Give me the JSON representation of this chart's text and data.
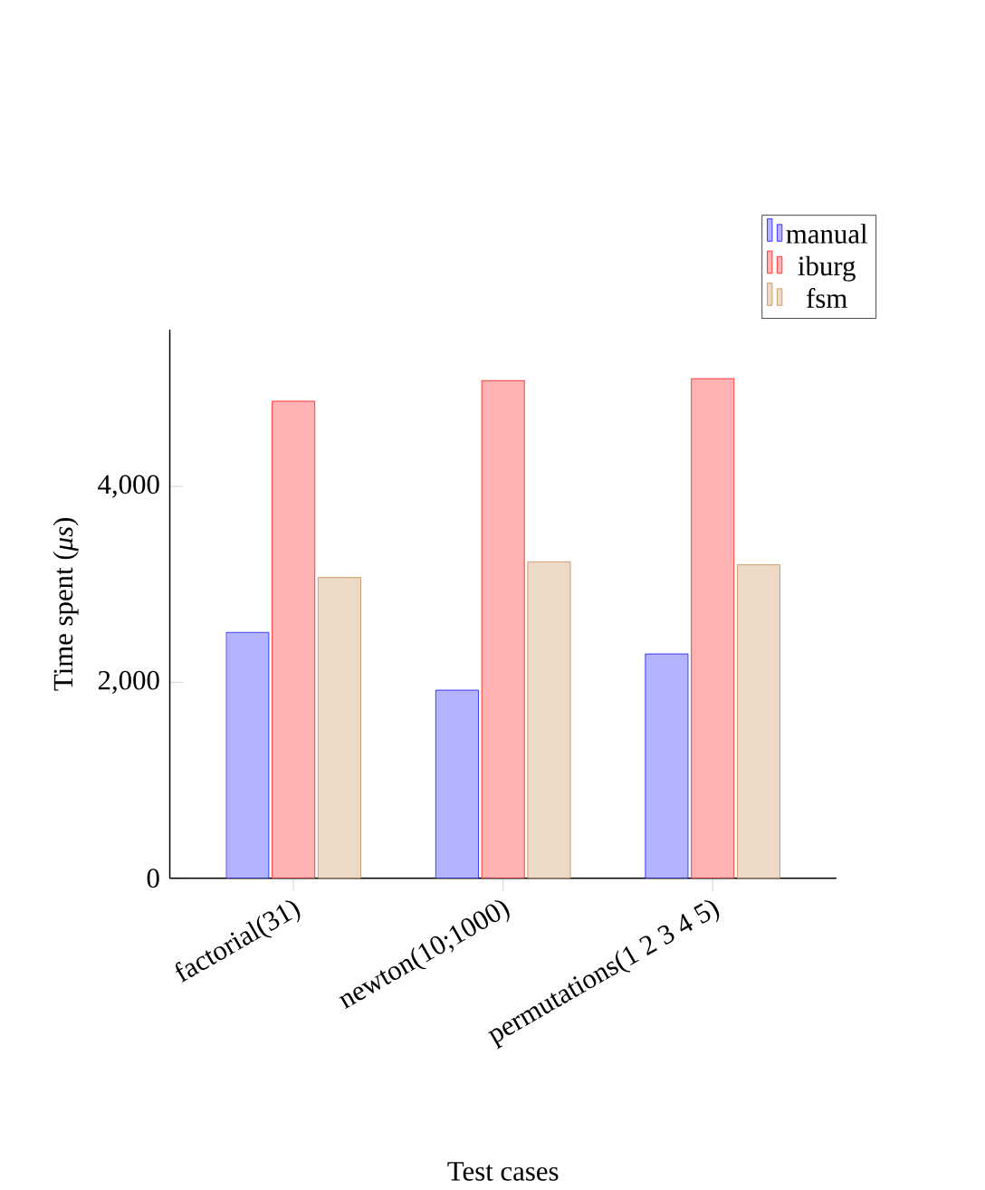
{
  "chart_data": {
    "type": "bar",
    "xlabel": "Test cases",
    "ylabel": "Time spent (*μs*)",
    "categories": [
      "factorial(31)",
      "newton(10;1000)",
      "permutations(1 2 3 4 5)"
    ],
    "series": [
      {
        "name": "manual",
        "color": "#b3b3ff",
        "values": [
          2510,
          1920,
          2290
        ]
      },
      {
        "name": "iburg",
        "color": "#ffb3b3",
        "values": [
          4870,
          5080,
          5100
        ]
      },
      {
        "name": "fsm",
        "color": "#ecd9c6",
        "values": [
          3070,
          3230,
          3200
        ]
      }
    ],
    "ylim": [
      0,
      5600
    ],
    "yticks": [
      0,
      {
        "value": 2000,
        "label": "2,000"
      },
      {
        "value": 4000,
        "label": "4,000"
      }
    ],
    "legend": "top right",
    "grid": false
  }
}
